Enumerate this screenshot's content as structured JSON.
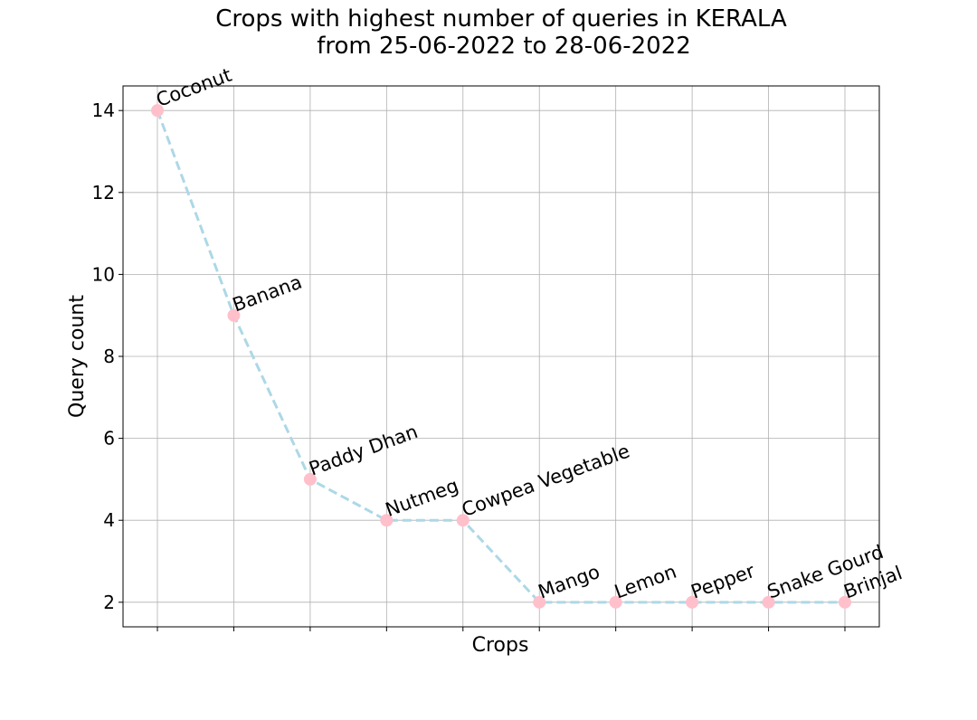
{
  "chart_data": {
    "type": "line",
    "title": [
      "Crops with highest number of queries in KERALA",
      "from 25-06-2022 to 28-06-2022"
    ],
    "xlabel": "Crops",
    "ylabel": "Query count",
    "categories": [
      "Coconut",
      "Banana",
      "Paddy Dhan",
      "Nutmeg",
      "Cowpea Vegetable",
      "Mango",
      "Lemon",
      "Pepper",
      "Snake Gourd",
      "Brinjal"
    ],
    "values": [
      14,
      9,
      5,
      4,
      4,
      2,
      2,
      2,
      2,
      2
    ],
    "ylim": [
      1.4,
      14.6
    ],
    "yticks": [
      2,
      4,
      6,
      8,
      10,
      12,
      14
    ],
    "grid": true,
    "show_x_tick_labels": false,
    "point_labels_rotated": true,
    "colors": {
      "line": "#add8e6",
      "marker": "#ffc0cb",
      "grid": "#b0b0b0",
      "axes": "#000000"
    }
  }
}
